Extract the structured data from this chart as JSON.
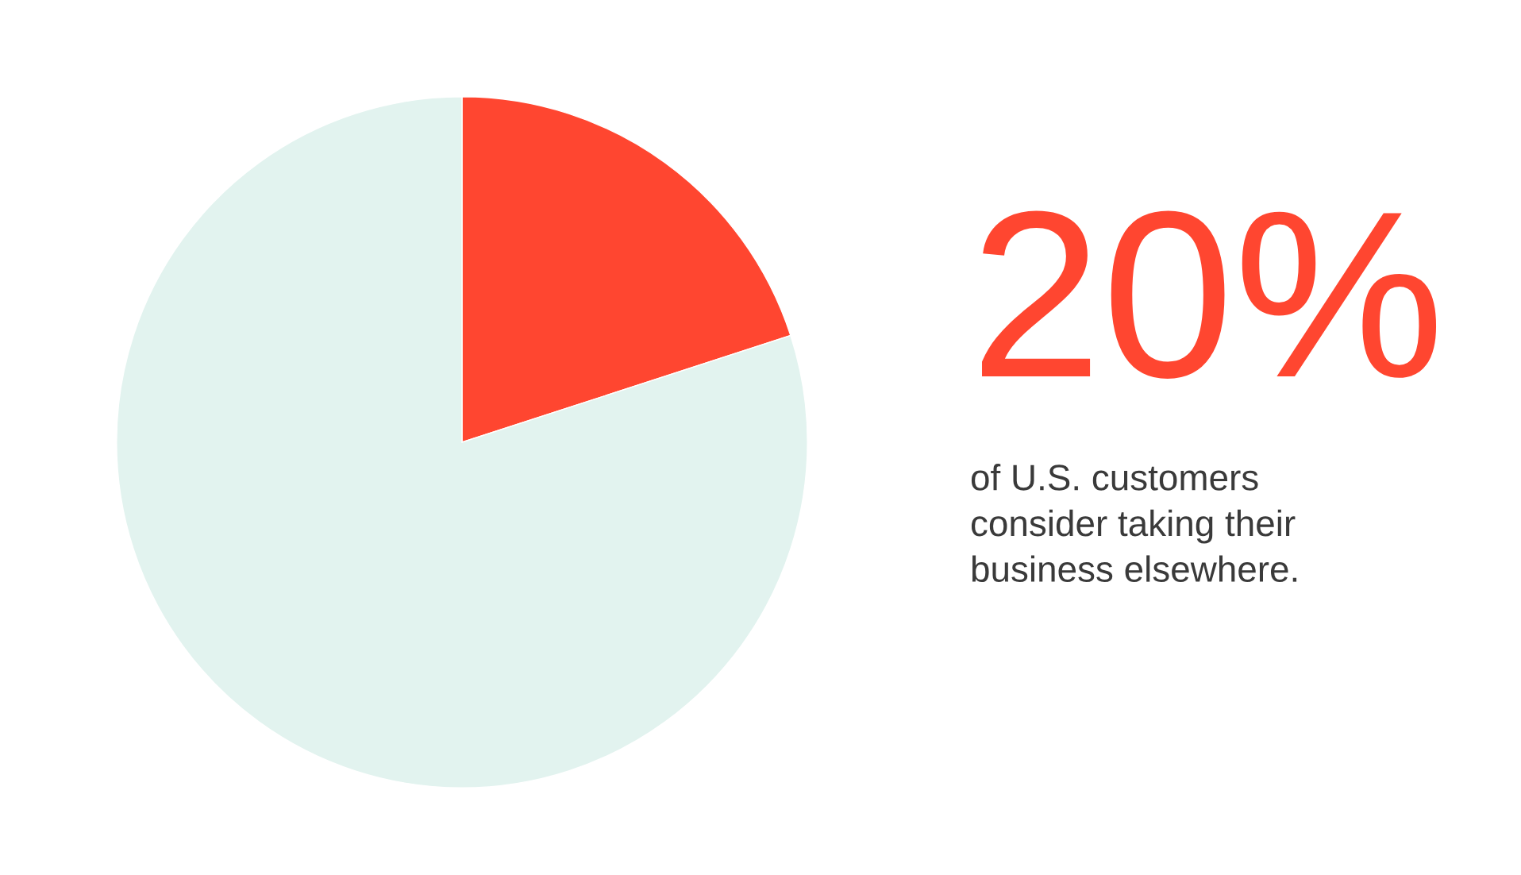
{
  "chart_data": {
    "type": "pie",
    "categories": [
      null,
      null
    ],
    "values": [
      20,
      80
    ],
    "colors": [
      "#ff4630",
      "#e2f3ef"
    ],
    "value_labels": [
      "20%",
      null
    ],
    "annotations": [
      "of U.S. customers\nconsider taking their\nbusiness elsewhere."
    ]
  }
}
